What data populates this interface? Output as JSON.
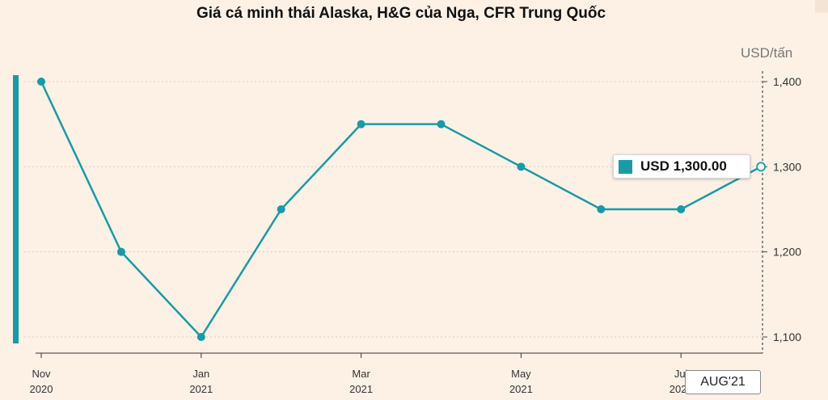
{
  "chart_data": {
    "type": "line",
    "title": "Giá cá minh thái Alaska, H&G của Nga, CFR Trung Quốc",
    "unit_label": "USD/tấn",
    "x_labels": [
      {
        "month": "Nov",
        "year": "2020"
      },
      {
        "month": "Jan",
        "year": "2021"
      },
      {
        "month": "Mar",
        "year": "2021"
      },
      {
        "month": "May",
        "year": "2021"
      },
      {
        "month": "Jul",
        "year": "2021"
      }
    ],
    "x": [
      "2020-11",
      "2020-12",
      "2021-01",
      "2021-02",
      "2021-03",
      "2021-04",
      "2021-05",
      "2021-06",
      "2021-07",
      "2021-08"
    ],
    "values": [
      1400,
      1200,
      1100,
      1250,
      1350,
      1350,
      1300,
      1250,
      1250,
      1300
    ],
    "y_ticks": [
      "1,100",
      "1,200",
      "1,300",
      "1,400"
    ],
    "y_tick_values": [
      1100,
      1200,
      1300,
      1400
    ],
    "ylim": [
      1100,
      1400
    ],
    "grid": true,
    "line_color": "#1a9aa6",
    "highlight": {
      "label": "USD 1,300.00",
      "cursor_label": "AUG'21"
    }
  }
}
